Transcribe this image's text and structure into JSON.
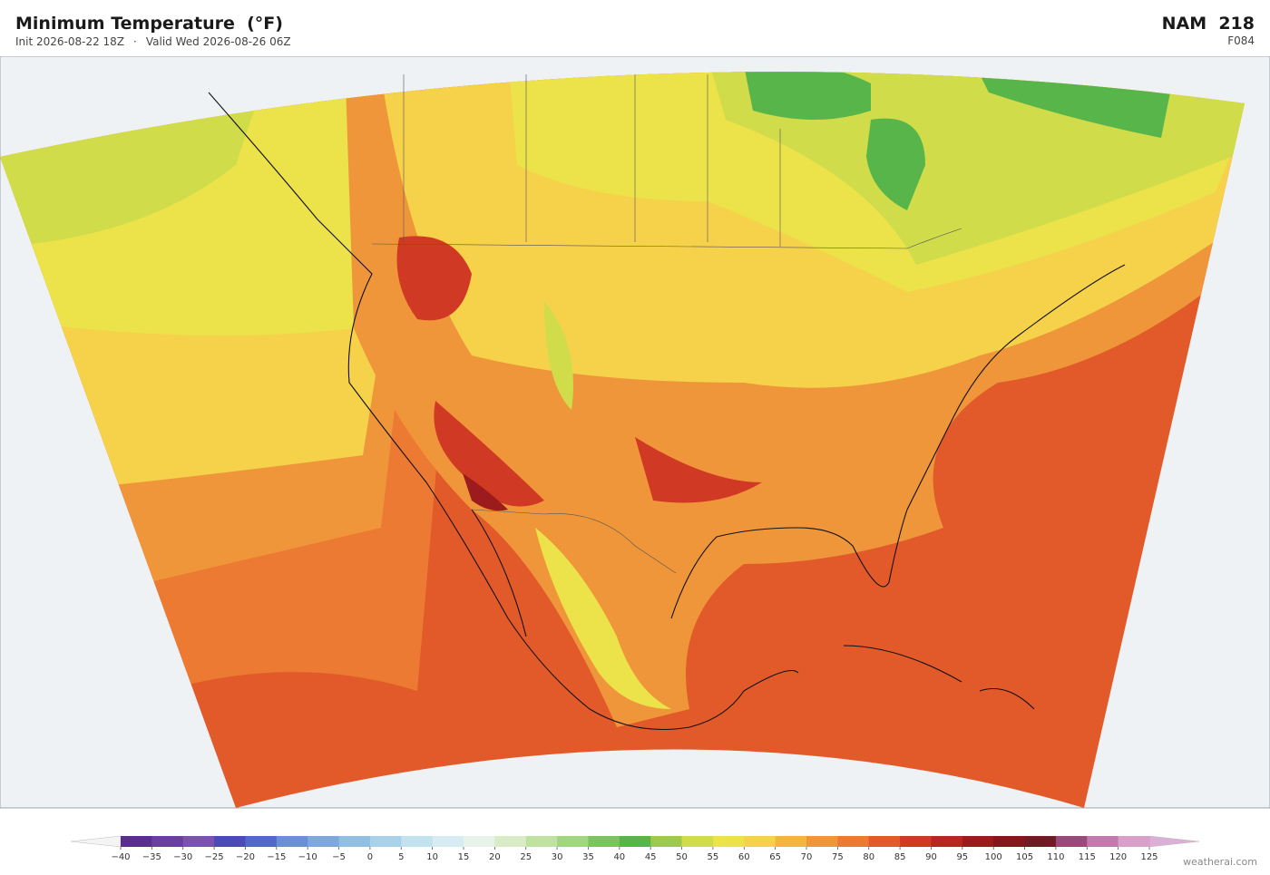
{
  "header": {
    "title": "Minimum Temperature  (°F)",
    "init": "Init 2026-08-22 18Z",
    "valid": "Valid Wed 2026-08-26 06Z",
    "model": "NAM  218",
    "forecast_hour": "F084"
  },
  "colorbar": {
    "ticks": [
      {
        "value": -40,
        "label": "−40"
      },
      {
        "value": -35,
        "label": "−35"
      },
      {
        "value": -30,
        "label": "−30"
      },
      {
        "value": -25,
        "label": "−25"
      },
      {
        "value": -20,
        "label": "−20"
      },
      {
        "value": -15,
        "label": "−15"
      },
      {
        "value": -10,
        "label": "−10"
      },
      {
        "value": -5,
        "label": "−5"
      },
      0,
      5,
      10,
      15,
      20,
      25,
      30,
      35,
      40,
      45,
      50,
      55,
      60,
      65,
      70,
      75,
      80,
      85,
      90,
      95,
      100,
      105,
      110,
      115,
      120,
      125
    ],
    "colors": [
      "#5b2d8e",
      "#6b3fa0",
      "#7b52ae",
      "#4b4bb8",
      "#5168c8",
      "#6a8fd4",
      "#7fa8dc",
      "#90bfe2",
      "#a9d2ea",
      "#c2e2ef",
      "#d6ecf2",
      "#e6f2ea",
      "#d8ecc8",
      "#bfe2a0",
      "#a0d67e",
      "#7cc460",
      "#58b54a",
      "#9cc94e",
      "#d0dc4a",
      "#ece24a",
      "#f6d24a",
      "#f4b53e",
      "#f0963a",
      "#ec7a32",
      "#e25a2a",
      "#d03a24",
      "#b82622",
      "#9c1c1e",
      "#84181c",
      "#701a24",
      "#9a4a7a",
      "#c47aae",
      "#d8a0c8"
    ],
    "under_color": "#f4f4f4",
    "over_color": "#dcb0d6"
  },
  "footer": {
    "watermark": "weatherai.com"
  }
}
